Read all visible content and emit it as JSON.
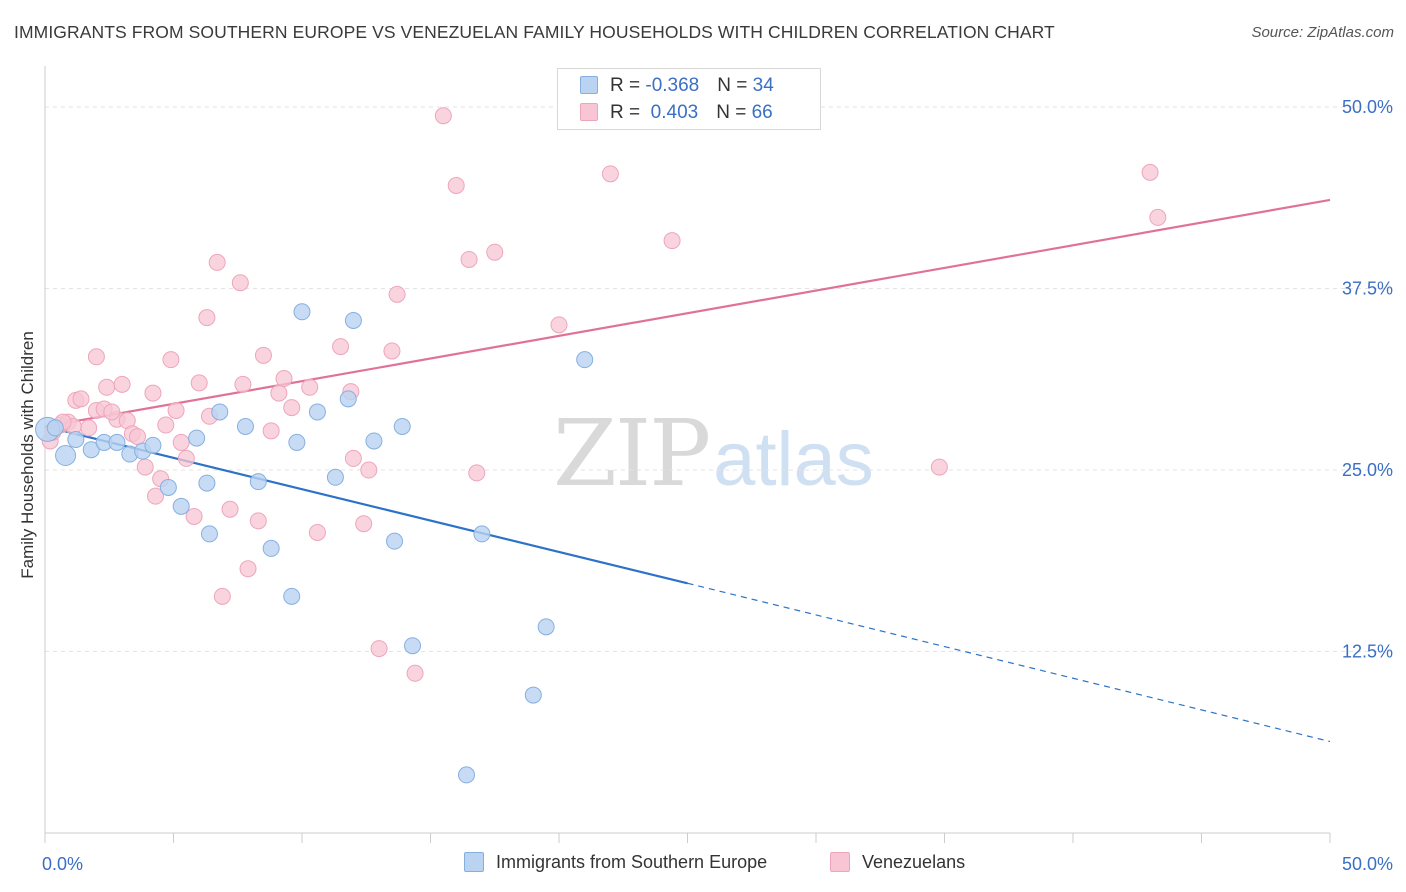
{
  "header": {
    "title": "IMMIGRANTS FROM SOUTHERN EUROPE VS VENEZUELAN FAMILY HOUSEHOLDS WITH CHILDREN CORRELATION CHART",
    "source": "Source: ZipAtlas.com"
  },
  "watermark": {
    "zip": "ZIP",
    "atlas": "atlas"
  },
  "legend": {
    "rows": [
      {
        "r_label": "R = ",
        "r_value": "-0.368",
        "n_label": "N = ",
        "n_value": "34"
      },
      {
        "r_label": "R = ",
        "r_value": " 0.403",
        "n_label": "N = ",
        "n_value": "66"
      }
    ]
  },
  "colors": {
    "blue_fill": "#b9d3f1",
    "blue_stroke": "#86afe0",
    "blue_line": "#2c72c8",
    "pink_fill": "#f7c5d3",
    "pink_stroke": "#eea5bb",
    "pink_line": "#e0729a",
    "tick_label": "#3a6fc4",
    "grid": "#e3e3e3"
  },
  "chart_data": {
    "type": "scatter",
    "title": "IMMIGRANTS FROM SOUTHERN EUROPE VS VENEZUELAN FAMILY HOUSEHOLDS WITH CHILDREN CORRELATION CHART",
    "xlabel": "",
    "ylabel": "Family Households with Children",
    "xlim": [
      0,
      50
    ],
    "ylim": [
      0,
      52
    ],
    "x_tick_labels": [
      {
        "value": 0,
        "label": "0.0%"
      },
      {
        "value": 50,
        "label": "50.0%"
      }
    ],
    "y_tick_labels": [
      {
        "value": 12.5,
        "label": "12.5%"
      },
      {
        "value": 25,
        "label": "25.0%"
      },
      {
        "value": 37.5,
        "label": "37.5%"
      },
      {
        "value": 50,
        "label": "50.0%"
      }
    ],
    "grid": true,
    "legend_position": "bottom-center",
    "series": [
      {
        "name": "Immigrants from Southern Europe",
        "color": "#86afe0",
        "trend": {
          "x": [
            0,
            25,
            50
          ],
          "y": [
            28.0,
            17.2,
            6.3
          ],
          "solid_until": 25
        },
        "points": [
          [
            0.1,
            27.8
          ],
          [
            0.4,
            27.9
          ],
          [
            0.8,
            26.0
          ],
          [
            1.2,
            27.1
          ],
          [
            1.8,
            26.4
          ],
          [
            2.3,
            26.9
          ],
          [
            2.8,
            26.9
          ],
          [
            3.3,
            26.1
          ],
          [
            3.8,
            26.3
          ],
          [
            4.2,
            26.7
          ],
          [
            4.8,
            23.8
          ],
          [
            5.3,
            22.5
          ],
          [
            5.9,
            27.2
          ],
          [
            6.3,
            24.1
          ],
          [
            6.4,
            20.6
          ],
          [
            6.8,
            29.0
          ],
          [
            7.8,
            28.0
          ],
          [
            8.3,
            24.2
          ],
          [
            8.8,
            19.6
          ],
          [
            9.6,
            16.3
          ],
          [
            9.8,
            26.9
          ],
          [
            10.0,
            35.9
          ],
          [
            10.6,
            29.0
          ],
          [
            11.3,
            24.5
          ],
          [
            11.8,
            29.9
          ],
          [
            12.0,
            35.3
          ],
          [
            12.8,
            27.0
          ],
          [
            13.6,
            20.1
          ],
          [
            13.9,
            28.0
          ],
          [
            14.3,
            12.9
          ],
          [
            17.0,
            20.6
          ],
          [
            19.0,
            9.5
          ],
          [
            19.5,
            14.2
          ],
          [
            21.0,
            32.6
          ],
          [
            16.4,
            4.0
          ]
        ]
      },
      {
        "name": "Venezuelans",
        "color": "#eea5bb",
        "trend": {
          "x": [
            0,
            50
          ],
          "y": [
            28.0,
            43.6
          ]
        },
        "points": [
          [
            0.2,
            27.0
          ],
          [
            0.6,
            28.1
          ],
          [
            0.9,
            28.3
          ],
          [
            1.2,
            29.8
          ],
          [
            1.4,
            29.9
          ],
          [
            1.7,
            27.9
          ],
          [
            2.0,
            29.1
          ],
          [
            2.0,
            32.8
          ],
          [
            2.3,
            29.2
          ],
          [
            2.4,
            30.7
          ],
          [
            2.8,
            28.5
          ],
          [
            3.0,
            30.9
          ],
          [
            3.2,
            28.4
          ],
          [
            3.4,
            27.5
          ],
          [
            3.6,
            27.3
          ],
          [
            3.9,
            25.2
          ],
          [
            4.2,
            30.3
          ],
          [
            4.3,
            23.2
          ],
          [
            4.5,
            24.4
          ],
          [
            4.7,
            28.1
          ],
          [
            4.9,
            32.6
          ],
          [
            5.1,
            29.1
          ],
          [
            5.3,
            26.9
          ],
          [
            5.5,
            25.8
          ],
          [
            5.8,
            21.8
          ],
          [
            6.0,
            31.0
          ],
          [
            6.3,
            35.5
          ],
          [
            6.4,
            28.7
          ],
          [
            6.7,
            39.3
          ],
          [
            6.9,
            16.3
          ],
          [
            7.2,
            22.3
          ],
          [
            7.6,
            37.9
          ],
          [
            7.7,
            30.9
          ],
          [
            7.9,
            18.2
          ],
          [
            8.3,
            21.5
          ],
          [
            8.5,
            32.9
          ],
          [
            8.8,
            27.7
          ],
          [
            9.1,
            30.3
          ],
          [
            9.3,
            31.3
          ],
          [
            9.6,
            29.3
          ],
          [
            10.3,
            30.7
          ],
          [
            10.6,
            20.7
          ],
          [
            11.5,
            33.5
          ],
          [
            11.9,
            30.4
          ],
          [
            12.0,
            25.8
          ],
          [
            12.4,
            21.3
          ],
          [
            12.6,
            25.0
          ],
          [
            13.5,
            33.2
          ],
          [
            13.7,
            37.1
          ],
          [
            13.0,
            12.7
          ],
          [
            14.4,
            11.0
          ],
          [
            15.5,
            49.4
          ],
          [
            16.0,
            44.6
          ],
          [
            16.5,
            39.5
          ],
          [
            16.8,
            24.8
          ],
          [
            17.5,
            40.0
          ],
          [
            20.0,
            35.0
          ],
          [
            22.0,
            45.4
          ],
          [
            24.4,
            40.8
          ],
          [
            34.8,
            25.2
          ],
          [
            43.0,
            45.5
          ],
          [
            43.3,
            42.4
          ],
          [
            1.1,
            28.0
          ],
          [
            0.3,
            27.6
          ],
          [
            0.7,
            28.3
          ],
          [
            2.6,
            29.0
          ]
        ]
      }
    ]
  },
  "bottom_legend": {
    "items": [
      {
        "label": "Immigrants from Southern Europe"
      },
      {
        "label": "Venezuelans"
      }
    ]
  }
}
